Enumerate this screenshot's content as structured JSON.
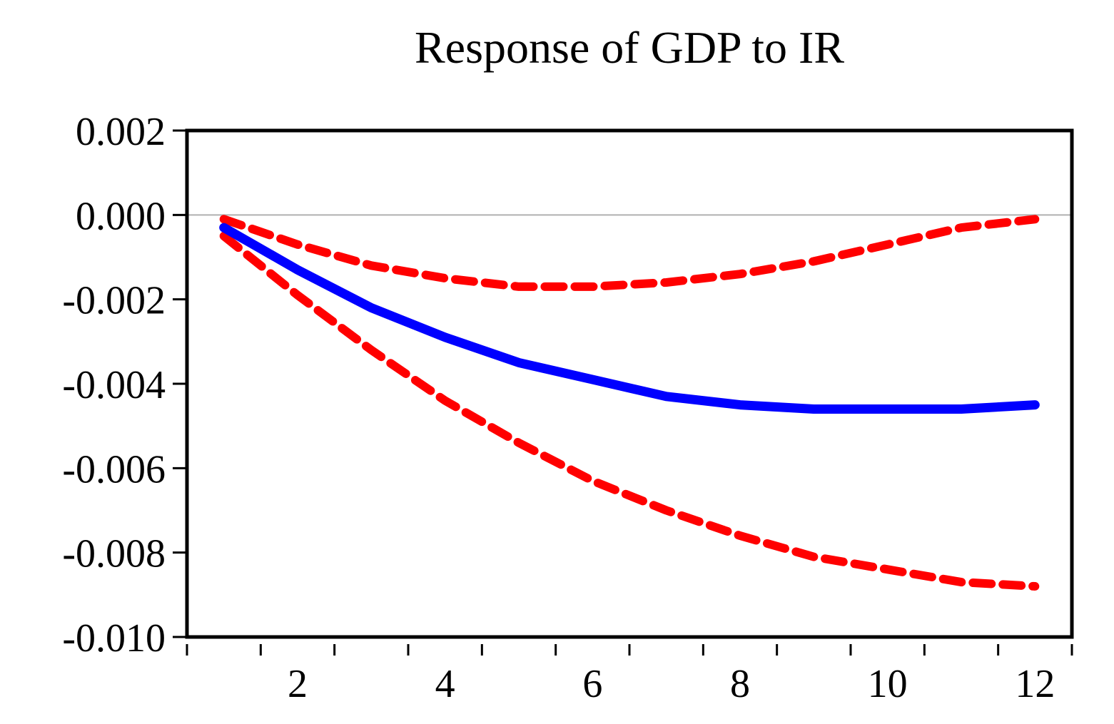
{
  "chart_data": {
    "type": "line",
    "title": "Response of GDP to IR",
    "xlabel": "",
    "ylabel": "",
    "xlim": [
      0.5,
      12.5
    ],
    "ylim": [
      -0.01,
      0.002
    ],
    "x_ticks": [
      1,
      2,
      3,
      4,
      5,
      6,
      7,
      8,
      9,
      10,
      11,
      12
    ],
    "x_tick_labels": [
      "2",
      "4",
      "6",
      "8",
      "10",
      "12"
    ],
    "x_tick_label_values": [
      2,
      4,
      6,
      8,
      10,
      12
    ],
    "y_ticks": [
      0.002,
      0.0,
      -0.002,
      -0.004,
      -0.006,
      -0.008,
      -0.01
    ],
    "y_tick_labels": [
      "0.002",
      "0.000",
      "-0.002",
      "-0.004",
      "-0.006",
      "-0.008",
      "-0.010"
    ],
    "zero_line": true,
    "grid": false,
    "legend": "none",
    "x": [
      1,
      2,
      3,
      4,
      5,
      6,
      7,
      8,
      9,
      10,
      11,
      12
    ],
    "series": [
      {
        "role": "response",
        "style": "solid",
        "color": "#0000ff",
        "values": [
          -0.0003,
          -0.0013,
          -0.0022,
          -0.0029,
          -0.0035,
          -0.0039,
          -0.0043,
          -0.0045,
          -0.0046,
          -0.0046,
          -0.0046,
          -0.0045
        ]
      },
      {
        "role": "upper-band",
        "style": "dashed",
        "color": "#ff0000",
        "values": [
          -0.0001,
          -0.0007,
          -0.0012,
          -0.0015,
          -0.0017,
          -0.0017,
          -0.0016,
          -0.0014,
          -0.0011,
          -0.0007,
          -0.0003,
          -0.0001
        ]
      },
      {
        "role": "lower-band",
        "style": "dashed",
        "color": "#ff0000",
        "values": [
          -0.0005,
          -0.0019,
          -0.0032,
          -0.0044,
          -0.0054,
          -0.0063,
          -0.007,
          -0.0076,
          -0.0081,
          -0.0084,
          -0.0087,
          -0.0088
        ]
      }
    ]
  }
}
